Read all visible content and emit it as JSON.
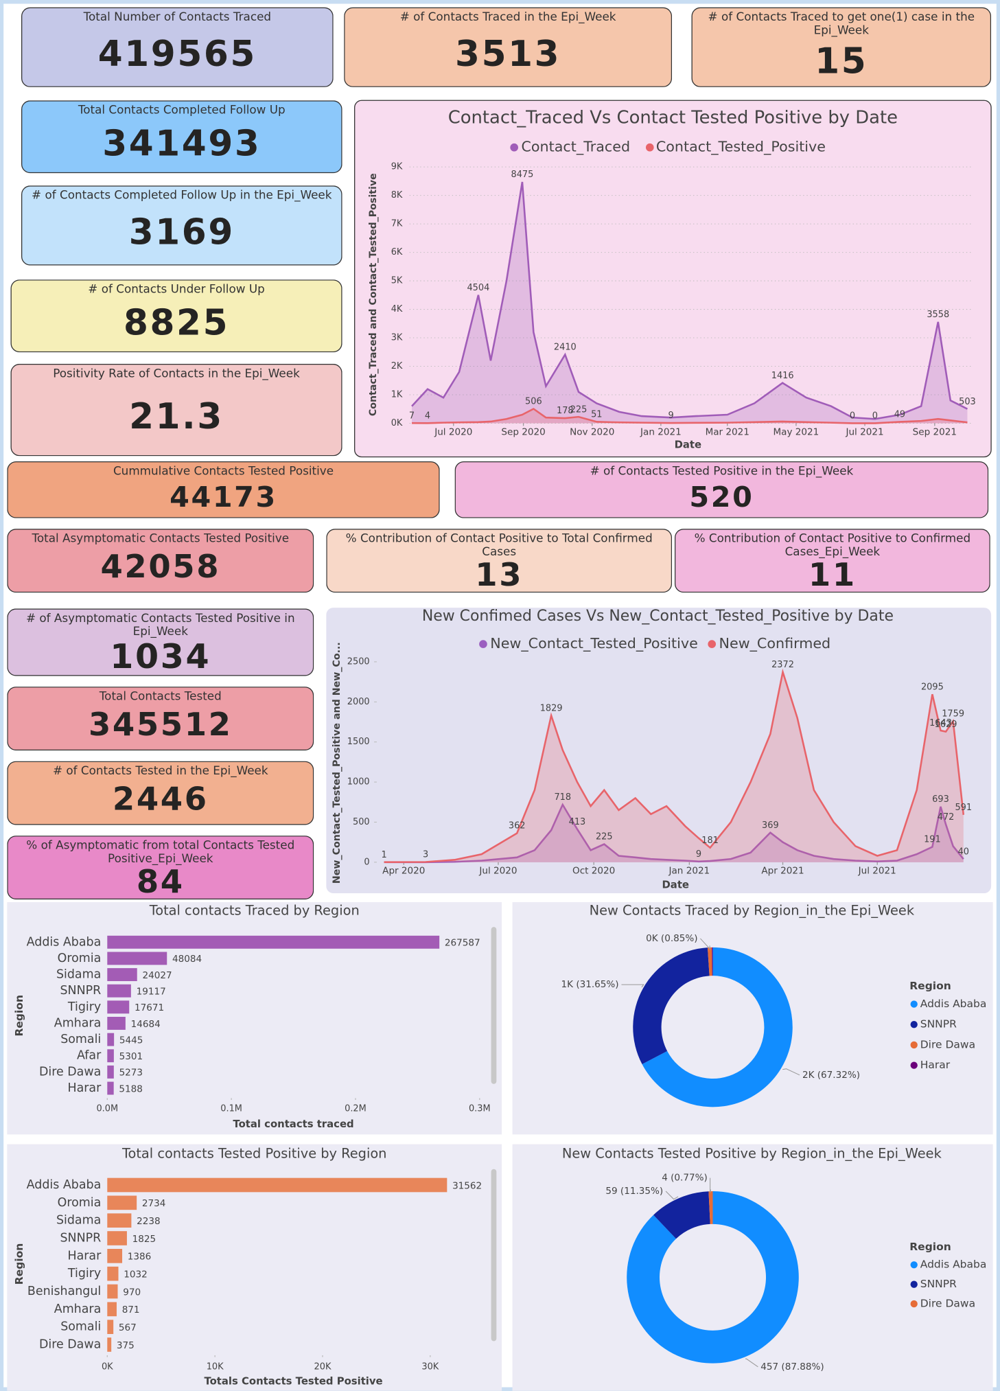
{
  "cards": [
    {
      "title": "Total Number of Contacts Traced",
      "value": 419565
    },
    {
      "title": "# of Contacts Traced in the Epi_Week",
      "value": 3513
    },
    {
      "title": "# of Contacts Traced to get one(1) case in the Epi_Week",
      "value": 15
    },
    {
      "title": "Total Contacts Completed Follow Up",
      "value": 341493
    },
    {
      "title": "# of Contacts Completed Follow Up in the Epi_Week",
      "value": 3169
    },
    {
      "title": "# of Contacts Under Follow Up",
      "value": 8825
    },
    {
      "title": "Positivity Rate of Contacts in the Epi_Week",
      "value": 21.3
    },
    {
      "title": "Cummulative Contacts Tested Positive",
      "value": 44173
    },
    {
      "title": "# of Contacts Tested Positive in the Epi_Week",
      "value": 520
    },
    {
      "title": "Total Asymptomatic Contacts Tested Positive",
      "value": 42058
    },
    {
      "title": "% Contribution of Contact Positive to Total Confirmed Cases",
      "value": 13
    },
    {
      "title": "% Contribution of Contact Positive to Confirmed Cases_Epi_Week",
      "value": 11
    },
    {
      "title": "# of Asymptomatic Contacts Tested Positive in Epi_Week",
      "value": 1034
    },
    {
      "title": "Total Contacts Tested",
      "value": 345512
    },
    {
      "title": "# of Contacts Tested in the Epi_Week",
      "value": 2446
    },
    {
      "title": "% of Asymptomatic from total Contacts Tested Positive_Epi_Week",
      "value": 84
    }
  ],
  "chart_data": [
    {
      "type": "line",
      "title": "Contact_Traced Vs Contact Tested Positive by Date",
      "x_label": "Date",
      "y_label": "Contact_Traced and Contact_Tested_Positive",
      "area": true,
      "grid": true,
      "x": [
        "2020-05-25",
        "2020-06-08",
        "2020-06-22",
        "2020-07-06",
        "2020-07-23",
        "2020-08-03",
        "2020-08-17",
        "2020-08-31",
        "2020-09-10",
        "2020-09-21",
        "2020-10-08",
        "2020-10-20",
        "2020-11-05",
        "2020-11-25",
        "2020-12-15",
        "2021-01-10",
        "2021-02-01",
        "2021-03-01",
        "2021-03-25",
        "2021-04-19",
        "2021-05-10",
        "2021-06-01",
        "2021-06-20",
        "2021-07-10",
        "2021-08-01",
        "2021-08-20",
        "2021-09-04",
        "2021-09-15",
        "2021-09-30"
      ],
      "series": [
        {
          "name": "Contact_Traced",
          "color": "#a05cb8",
          "values": [
            600,
            1200,
            900,
            1800,
            4504,
            2200,
            5000,
            8475,
            3200,
            1300,
            2410,
            1100,
            700,
            400,
            250,
            200,
            250,
            300,
            700,
            1416,
            900,
            600,
            200,
            150,
            300,
            600,
            3558,
            800,
            503
          ],
          "value_labels": [
            null,
            null,
            null,
            null,
            "4504",
            null,
            null,
            "8475",
            null,
            null,
            "2410",
            null,
            null,
            null,
            null,
            null,
            null,
            null,
            null,
            "1416",
            null,
            null,
            null,
            null,
            null,
            null,
            "3558",
            null,
            "503"
          ]
        },
        {
          "name": "Contact_Tested_Positive",
          "color": "#e8646a",
          "values": [
            7,
            4,
            20,
            30,
            40,
            60,
            150,
            300,
            506,
            200,
            178,
            225,
            51,
            30,
            20,
            9,
            15,
            20,
            40,
            60,
            40,
            20,
            0,
            0,
            49,
            80,
            150,
            100,
            30
          ],
          "value_labels": [
            "7",
            "4",
            null,
            null,
            null,
            null,
            null,
            null,
            "506",
            null,
            "178",
            "225",
            "51",
            null,
            null,
            "9",
            null,
            null,
            null,
            null,
            null,
            null,
            "0",
            "0",
            "49",
            null,
            null,
            null,
            null
          ]
        }
      ],
      "xlim": [
        "2020-05-23",
        "2021-10-03"
      ],
      "xticks": [
        {
          "value": "2020-07-01",
          "label": "Jul 2020"
        },
        {
          "value": "2020-09-01",
          "label": "Sep 2020"
        },
        {
          "value": "2020-11-01",
          "label": "Nov 2020"
        },
        {
          "value": "2021-01-01",
          "label": "Jan 2021"
        },
        {
          "value": "2021-03-01",
          "label": "Mar 2021"
        },
        {
          "value": "2021-05-01",
          "label": "May 2021"
        },
        {
          "value": "2021-07-01",
          "label": "Jul 2021"
        },
        {
          "value": "2021-09-01",
          "label": "Sep 2021"
        }
      ],
      "ylim": [
        0,
        9000
      ],
      "yticks": [
        {
          "value": 0,
          "label": "0K"
        },
        {
          "value": 1000,
          "label": "1K"
        },
        {
          "value": 2000,
          "label": "2K"
        },
        {
          "value": 3000,
          "label": "3K"
        },
        {
          "value": 4000,
          "label": "4K"
        },
        {
          "value": 5000,
          "label": "5K"
        },
        {
          "value": 6000,
          "label": "6K"
        },
        {
          "value": 7000,
          "label": "7K"
        },
        {
          "value": 8000,
          "label": "8K"
        },
        {
          "value": 9000,
          "label": "9K"
        }
      ]
    },
    {
      "type": "line",
      "title": "New Confimed Cases Vs New_Contact_Tested_Positive by Date",
      "x_label": "Date",
      "y_label": "New_Contact_Tested_Positive and New_Co...",
      "area": true,
      "grid": false,
      "x": [
        "2020-03-13",
        "2020-04-22",
        "2020-05-20",
        "2020-06-15",
        "2020-07-19",
        "2020-08-05",
        "2020-08-21",
        "2020-09-01",
        "2020-09-15",
        "2020-09-28",
        "2020-10-11",
        "2020-10-25",
        "2020-11-10",
        "2020-11-25",
        "2020-12-10",
        "2020-12-28",
        "2021-01-10",
        "2021-01-21",
        "2021-02-10",
        "2021-03-01",
        "2021-03-20",
        "2021-04-01",
        "2021-04-15",
        "2021-05-01",
        "2021-05-20",
        "2021-06-10",
        "2021-07-01",
        "2021-07-20",
        "2021-08-08",
        "2021-08-23",
        "2021-08-31",
        "2021-09-05",
        "2021-09-12",
        "2021-09-22"
      ],
      "series": [
        {
          "name": "New_Contact_Tested_Positive",
          "color": "#9b5fc0",
          "values": [
            0,
            0,
            5,
            20,
            60,
            150,
            400,
            718,
            413,
            150,
            225,
            80,
            60,
            40,
            30,
            20,
            9,
            15,
            40,
            120,
            369,
            250,
            150,
            80,
            40,
            20,
            10,
            20,
            100,
            191,
            693,
            472,
            200,
            40
          ],
          "value_labels": [
            null,
            null,
            null,
            null,
            null,
            null,
            null,
            "718",
            "413",
            null,
            "225",
            null,
            null,
            null,
            null,
            null,
            "9",
            null,
            null,
            null,
            "369",
            null,
            null,
            null,
            null,
            null,
            null,
            null,
            null,
            "191",
            "693",
            "472",
            null,
            "40"
          ]
        },
        {
          "name": "New_Confirmed",
          "color": "#e8646a",
          "values": [
            1,
            3,
            30,
            100,
            362,
            900,
            1829,
            1400,
            1000,
            700,
            900,
            650,
            800,
            600,
            700,
            450,
            300,
            181,
            500,
            1000,
            1600,
            2372,
            1800,
            900,
            500,
            200,
            80,
            150,
            900,
            2095,
            1643,
            1629,
            1759,
            591
          ],
          "value_labels": [
            "1",
            "3",
            null,
            null,
            "362",
            null,
            "1829",
            null,
            null,
            null,
            null,
            null,
            null,
            null,
            null,
            null,
            null,
            "181",
            null,
            null,
            null,
            "2372",
            null,
            null,
            null,
            null,
            null,
            null,
            null,
            "2095",
            "1643",
            "1629",
            "1759",
            "591"
          ]
        }
      ],
      "xlim": [
        "2020-03-06",
        "2021-09-29"
      ],
      "xticks": [
        {
          "value": "2020-04-01",
          "label": "Apr 2020"
        },
        {
          "value": "2020-07-01",
          "label": "Jul 2020"
        },
        {
          "value": "2020-10-01",
          "label": "Oct 2020"
        },
        {
          "value": "2021-01-01",
          "label": "Jan 2021"
        },
        {
          "value": "2021-04-01",
          "label": "Apr 2021"
        },
        {
          "value": "2021-07-01",
          "label": "Jul 2021"
        }
      ],
      "ylim": [
        0,
        2500
      ],
      "yticks": [
        0,
        500,
        1000,
        1500,
        2000,
        2500
      ]
    },
    {
      "type": "hbar",
      "title": "Total contacts Traced by Region",
      "y_label": "Region",
      "x_label": "Total contacts traced",
      "color": "#a35cb5",
      "categories": [
        "Addis Ababa",
        "Oromia",
        "Sidama",
        "SNNPR",
        "Tigiry",
        "Amhara",
        "Somali",
        "Afar",
        "Dire Dawa",
        "Harar"
      ],
      "values": [
        267587,
        48084,
        24027,
        19117,
        17671,
        14684,
        5445,
        5301,
        5273,
        5188
      ],
      "xlim": [
        0,
        300000
      ],
      "xticks": [
        {
          "value": 0,
          "label": "0.0M"
        },
        {
          "value": 100000,
          "label": "0.1M"
        },
        {
          "value": 200000,
          "label": "0.2M"
        },
        {
          "value": 300000,
          "label": "0.3M"
        }
      ]
    },
    {
      "type": "donut",
      "title": "New Contacts Traced by Region_in_the Epi_Week",
      "legend_title": "Region",
      "legend": "right",
      "categories": [
        "Addis Ababa",
        "SNNPR",
        "Dire Dawa",
        "Harar"
      ],
      "values": [
        67.32,
        31.65,
        0.85,
        0.18
      ],
      "value_labels": [
        "2K (67.32%)",
        "1K (31.65%)",
        "0K (0.85%)",
        null
      ],
      "colors": [
        "#118dff",
        "#12239e",
        "#e66c37",
        "#6b007b"
      ]
    },
    {
      "type": "hbar",
      "title": "Total contacts Tested Positive by Region",
      "y_label": "Region",
      "x_label": "Totals Contacts Tested Positive",
      "color": "#e8865a",
      "categories": [
        "Addis Ababa",
        "Oromia",
        "Sidama",
        "SNNPR",
        "Harar",
        "Tigiry",
        "Benishangul",
        "Amhara",
        "Somali",
        "Dire Dawa"
      ],
      "values": [
        31562,
        2734,
        2238,
        1825,
        1386,
        1032,
        970,
        871,
        567,
        375
      ],
      "xlim": [
        0,
        35000
      ],
      "xticks": [
        {
          "value": 0,
          "label": "0K"
        },
        {
          "value": 10000,
          "label": "10K"
        },
        {
          "value": 20000,
          "label": "20K"
        },
        {
          "value": 30000,
          "label": "30K"
        }
      ]
    },
    {
      "type": "donut",
      "title": "New Contacts Tested Positive by Region_in_the Epi_Week",
      "legend_title": "Region",
      "legend": "right",
      "categories": [
        "Addis Ababa",
        "SNNPR",
        "Dire Dawa"
      ],
      "values": [
        457,
        59,
        4
      ],
      "value_labels": [
        "457 (87.88%)",
        "59 (11.35%)",
        "4 (0.77%)"
      ],
      "colors": [
        "#118dff",
        "#12239e",
        "#e66c37"
      ]
    }
  ]
}
